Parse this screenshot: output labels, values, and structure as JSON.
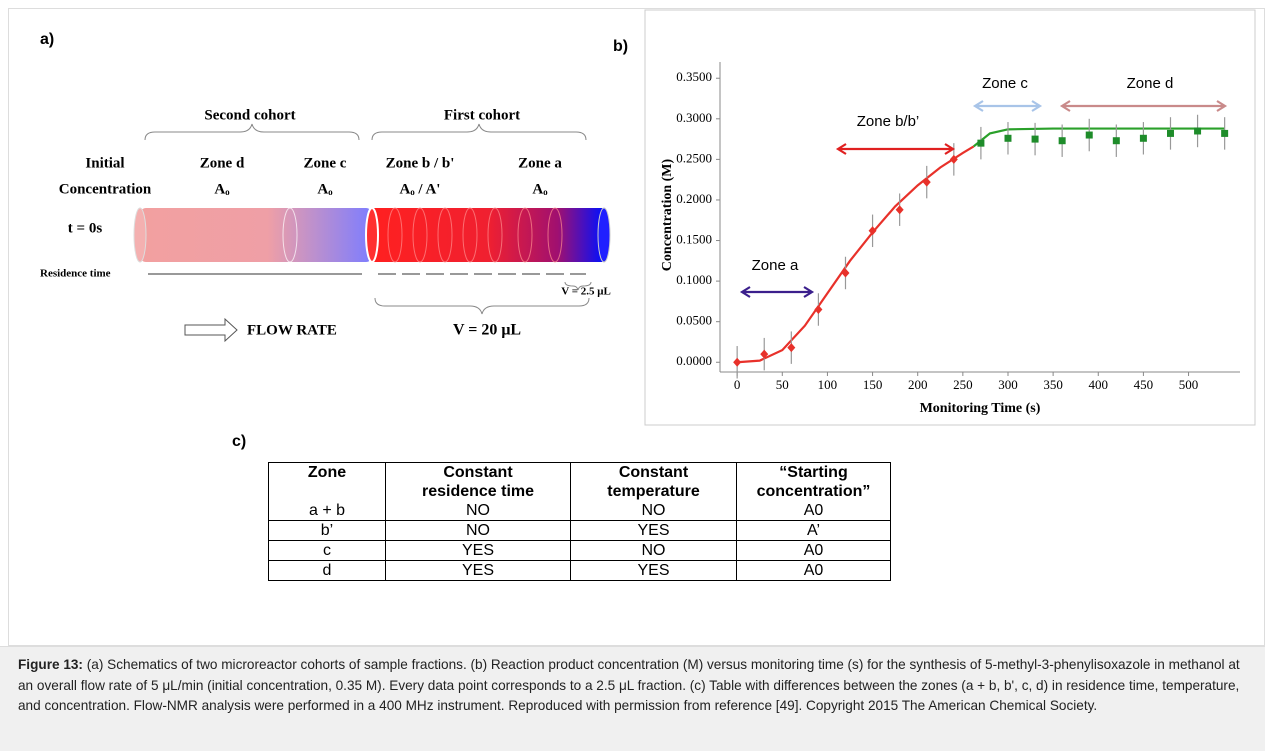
{
  "panel_a": {
    "label": "a)",
    "second_cohort": "Second cohort",
    "first_cohort": "First cohort",
    "initial": [
      "Initial",
      "Concentration"
    ],
    "zones": [
      {
        "name": "Zone d",
        "conc": "Aₒ"
      },
      {
        "name": "Zone c",
        "conc": "Aₒ"
      },
      {
        "name": "Zone b / b'",
        "conc": "Aₒ / A'"
      },
      {
        "name": "Zone a",
        "conc": "Aₒ"
      }
    ],
    "time": "t = 0s",
    "residence": "Residence time",
    "v_small": "V = 2.5 μL",
    "flow": "FLOW RATE",
    "v_total": "V = 20 μL"
  },
  "chart_data": {
    "type": "scatter",
    "panel_label": "b)",
    "xlabel": "Monitoring Time (s)",
    "ylabel": "Concentration (M)",
    "xlim": [
      -19,
      557
    ],
    "ylim": [
      -0.012,
      0.37
    ],
    "xticks": [
      0,
      50,
      100,
      150,
      200,
      250,
      300,
      350,
      400,
      450,
      500
    ],
    "yticks": [
      {
        "value": 0,
        "label": "0.0000"
      },
      {
        "value": 0.05,
        "label": "0.0500"
      },
      {
        "value": 0.1,
        "label": "0.1000"
      },
      {
        "value": 0.15,
        "label": "0.1500"
      },
      {
        "value": 0.2,
        "label": "0.2000"
      },
      {
        "value": 0.25,
        "label": "0.2500"
      },
      {
        "value": 0.3,
        "label": "0.3000"
      },
      {
        "value": 0.35,
        "label": "0.3500"
      }
    ],
    "series": [
      {
        "color": "#e8312a",
        "marker": "diamond",
        "x": [
          0,
          30,
          60,
          90,
          120,
          150,
          180,
          210,
          240
        ],
        "values": [
          0,
          0.01,
          0.018,
          0.065,
          0.11,
          0.162,
          0.188,
          0.222,
          0.25
        ],
        "errors": [
          0.02,
          0.02,
          0.02,
          0.02,
          0.02,
          0.02,
          0.02,
          0.02,
          0.02
        ]
      },
      {
        "color": "#1e8c2a",
        "marker": "square",
        "x": [
          270,
          300,
          330,
          360,
          390,
          420,
          450,
          480,
          510,
          540
        ],
        "values": [
          0.27,
          0.276,
          0.275,
          0.273,
          0.28,
          0.273,
          0.276,
          0.282,
          0.285,
          0.282
        ],
        "errors": [
          0.02,
          0.02,
          0.02,
          0.02,
          0.02,
          0.02,
          0.02,
          0.02,
          0.02,
          0.02
        ]
      }
    ],
    "fits": [
      {
        "color": "#e8312a",
        "x": [
          0,
          25,
          50,
          75,
          100,
          125,
          150,
          175,
          200,
          225,
          250,
          262
        ],
        "values": [
          0,
          0.002,
          0.015,
          0.045,
          0.085,
          0.125,
          0.16,
          0.192,
          0.218,
          0.24,
          0.258,
          0.266
        ]
      },
      {
        "color": "#2aa02a",
        "x": [
          262,
          280,
          300,
          350,
          400,
          450,
          500,
          540
        ],
        "values": [
          0.266,
          0.282,
          0.287,
          0.288,
          0.288,
          0.288,
          0.288,
          0.288
        ]
      }
    ],
    "annotations": [
      {
        "text": "Zone a",
        "color": "#3b1f8c"
      },
      {
        "text": "Zone b/b’",
        "color": "#e02020"
      },
      {
        "text": "Zone c",
        "color": "#a8c4e8"
      },
      {
        "text": "Zone d",
        "color": "#c98a8a"
      }
    ]
  },
  "panel_c": {
    "label": "c)",
    "header": [
      [
        "Zone"
      ],
      [
        "Constant",
        "residence time"
      ],
      [
        "Constant",
        "temperature"
      ],
      [
        "“Starting",
        "concentration”"
      ]
    ],
    "rows": [
      [
        "a + b",
        "NO",
        "NO",
        "A0"
      ],
      [
        "b’",
        "NO",
        "YES",
        "A’"
      ],
      [
        "c",
        "YES",
        "NO",
        "A0"
      ],
      [
        "d",
        "YES",
        "YES",
        "A0"
      ]
    ]
  },
  "caption": {
    "label": "Figure 13:",
    "text": "(a) Schematics of two microreactor cohorts of sample fractions. (b) Reaction product concentration (M) versus monitoring time (s) for the synthesis of 5-methyl-3-phenylisoxazole in methanol at an overall flow rate of 5 μL/min (initial concentration, 0.35 M). Every data point corresponds to a 2.5 μL fraction. (c) Table with differences between the zones (a + b, b', c, d) in residence time, temperature, and concentration. Flow-NMR analysis were performed in a 400 MHz instrument. Reproduced with permission from reference [49]. Copyright 2015 The American Chemical Society."
  }
}
